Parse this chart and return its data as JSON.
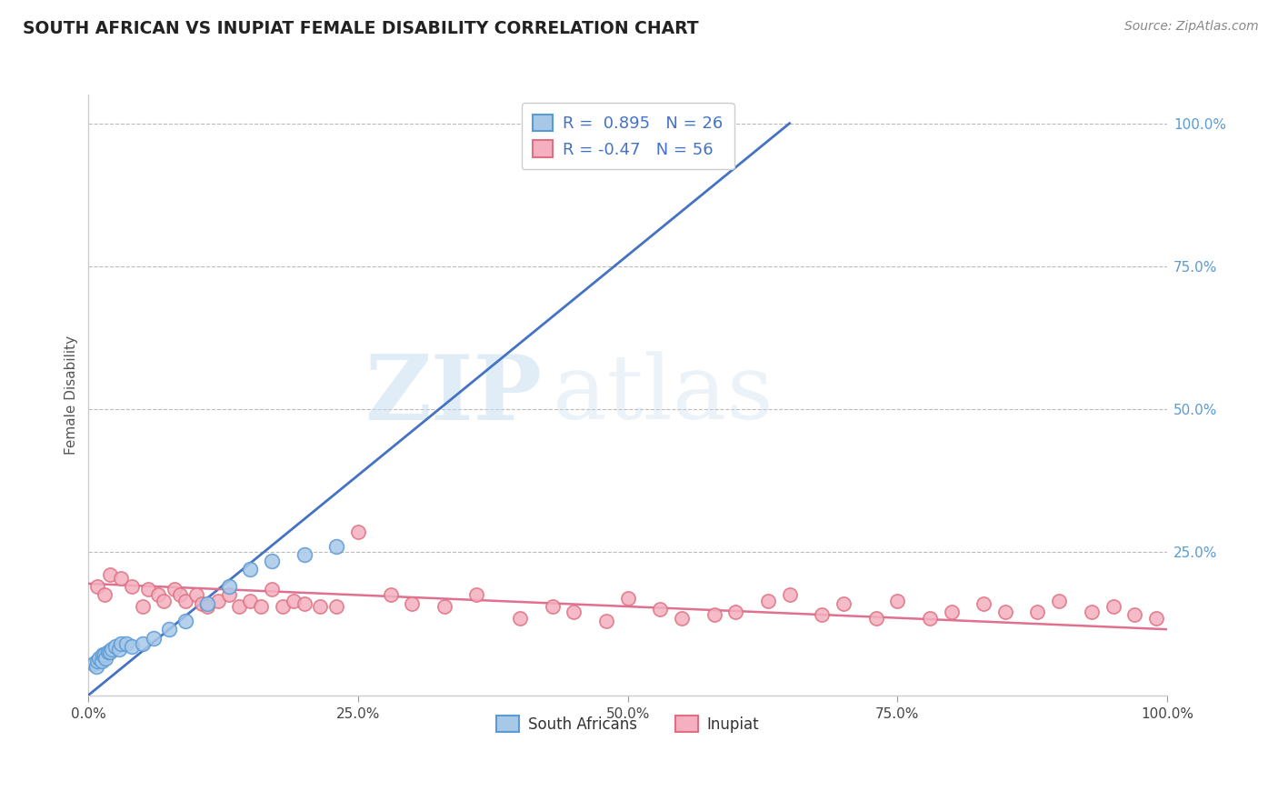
{
  "title": "SOUTH AFRICAN VS INUPIAT FEMALE DISABILITY CORRELATION CHART",
  "source": "Source: ZipAtlas.com",
  "ylabel": "Female Disability",
  "xlim": [
    0.0,
    1.0
  ],
  "ylim": [
    0.0,
    1.05
  ],
  "xtick_vals": [
    0.0,
    0.25,
    0.5,
    0.75,
    1.0
  ],
  "xtick_labels": [
    "0.0%",
    "25.0%",
    "50.0%",
    "75.0%",
    "100.0%"
  ],
  "ytick_vals": [
    0.25,
    0.5,
    0.75,
    1.0
  ],
  "ytick_labels": [
    "25.0%",
    "50.0%",
    "75.0%",
    "100.0%"
  ],
  "sa_R": 0.895,
  "sa_N": 26,
  "inupiat_R": -0.47,
  "inupiat_N": 56,
  "sa_scatter_color": "#a8c8e8",
  "sa_edge_color": "#5b9bd5",
  "inupiat_scatter_color": "#f4b0c0",
  "inupiat_edge_color": "#e07080",
  "sa_line_color": "#4472c4",
  "inupiat_line_color": "#e07090",
  "watermark_zip": "ZIP",
  "watermark_atlas": "atlas",
  "bg_color": "#ffffff",
  "grid_color": "#bbbbbb",
  "title_color": "#222222",
  "source_color": "#888888",
  "axis_label_color": "#555555",
  "right_tick_color": "#5b9bd5",
  "sa_line_x0": 0.0,
  "sa_line_y0": 0.0,
  "sa_line_x1": 0.65,
  "sa_line_y1": 1.0,
  "inupiat_line_x0": 0.0,
  "inupiat_line_y0": 0.195,
  "inupiat_line_x1": 1.0,
  "inupiat_line_y1": 0.115,
  "sa_x": [
    0.005,
    0.007,
    0.008,
    0.01,
    0.012,
    0.013,
    0.015,
    0.016,
    0.018,
    0.02,
    0.022,
    0.025,
    0.028,
    0.03,
    0.035,
    0.04,
    0.05,
    0.06,
    0.075,
    0.09,
    0.11,
    0.13,
    0.15,
    0.17,
    0.2,
    0.23
  ],
  "sa_y": [
    0.055,
    0.05,
    0.06,
    0.065,
    0.06,
    0.07,
    0.07,
    0.065,
    0.075,
    0.075,
    0.08,
    0.085,
    0.08,
    0.09,
    0.09,
    0.085,
    0.09,
    0.1,
    0.115,
    0.13,
    0.16,
    0.19,
    0.22,
    0.235,
    0.245,
    0.26
  ],
  "inupiat_x": [
    0.008,
    0.015,
    0.02,
    0.03,
    0.04,
    0.05,
    0.055,
    0.065,
    0.07,
    0.08,
    0.085,
    0.09,
    0.1,
    0.105,
    0.11,
    0.12,
    0.13,
    0.14,
    0.15,
    0.16,
    0.17,
    0.18,
    0.19,
    0.2,
    0.215,
    0.23,
    0.25,
    0.28,
    0.3,
    0.33,
    0.36,
    0.4,
    0.43,
    0.45,
    0.48,
    0.5,
    0.53,
    0.55,
    0.58,
    0.6,
    0.63,
    0.65,
    0.68,
    0.7,
    0.73,
    0.75,
    0.78,
    0.8,
    0.83,
    0.85,
    0.88,
    0.9,
    0.93,
    0.95,
    0.97,
    0.99
  ],
  "inupiat_y": [
    0.19,
    0.175,
    0.21,
    0.205,
    0.19,
    0.155,
    0.185,
    0.175,
    0.165,
    0.185,
    0.175,
    0.165,
    0.175,
    0.16,
    0.155,
    0.165,
    0.175,
    0.155,
    0.165,
    0.155,
    0.185,
    0.155,
    0.165,
    0.16,
    0.155,
    0.155,
    0.285,
    0.175,
    0.16,
    0.155,
    0.175,
    0.135,
    0.155,
    0.145,
    0.13,
    0.17,
    0.15,
    0.135,
    0.14,
    0.145,
    0.165,
    0.175,
    0.14,
    0.16,
    0.135,
    0.165,
    0.135,
    0.145,
    0.16,
    0.145,
    0.145,
    0.165,
    0.145,
    0.155,
    0.14,
    0.135
  ]
}
